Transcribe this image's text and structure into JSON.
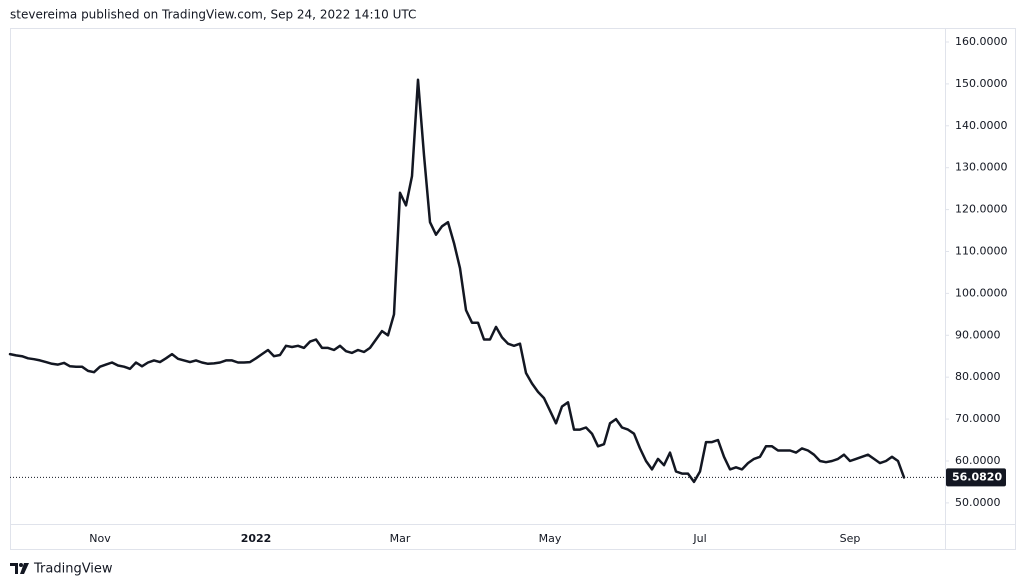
{
  "header": "stevereima published on TradingView.com, Sep 24, 2022 14:10 UTC",
  "brand": "TradingView",
  "chart_data": {
    "type": "line",
    "categories": [
      null,
      null,
      null,
      null,
      null,
      null,
      null,
      null,
      null,
      null,
      null,
      null,
      null,
      null,
      null,
      "Nov",
      null,
      null,
      null,
      null,
      null,
      null,
      null,
      null,
      null,
      null,
      null,
      null,
      null,
      null,
      null,
      null,
      null,
      null,
      null,
      null,
      null,
      null,
      null,
      null,
      null,
      "2022",
      null,
      null,
      null,
      null,
      null,
      null,
      null,
      null,
      null,
      null,
      null,
      null,
      null,
      null,
      null,
      null,
      null,
      null,
      null,
      null,
      null,
      null,
      null,
      "Mar",
      null,
      null,
      null,
      null,
      null,
      null,
      null,
      null,
      null,
      null,
      null,
      null,
      null,
      null,
      null,
      null,
      null,
      null,
      null,
      null,
      null,
      null,
      null,
      null,
      "May",
      null,
      null,
      null,
      null,
      null,
      null,
      null,
      null,
      null,
      null,
      null,
      null,
      null,
      null,
      null,
      null,
      null,
      null,
      null,
      null,
      null,
      null,
      null,
      null,
      "Jul",
      null,
      null,
      null,
      null,
      null,
      null,
      null,
      null,
      null,
      null,
      null,
      null,
      null,
      null,
      null,
      null,
      null,
      null,
      null,
      null,
      null,
      null,
      null,
      null,
      "Sep",
      null,
      null,
      null,
      null,
      null,
      null,
      null,
      null,
      null
    ],
    "series": [
      {
        "color": "#131722",
        "values": [
          85.5,
          85.2,
          85,
          84.5,
          84.3,
          84,
          83.6,
          83.2,
          83,
          83.4,
          82.6,
          82.5,
          82.5,
          81.5,
          81.2,
          82.5,
          83,
          83.5,
          82.8,
          82.5,
          82,
          83.5,
          82.6,
          83.5,
          84,
          83.6,
          84.5,
          85.5,
          84.4,
          84,
          83.6,
          84,
          83.5,
          83.2,
          83.3,
          83.5,
          84,
          84,
          83.5,
          83.5,
          83.6,
          84.5,
          85.5,
          86.5,
          85,
          85.3,
          87.5,
          87.2,
          87.5,
          87,
          88.5,
          89,
          87,
          87,
          86.5,
          87.5,
          86.2,
          85.8,
          86.5,
          86,
          87,
          89,
          91,
          90,
          95,
          124,
          121,
          128,
          151,
          133,
          117,
          114,
          116,
          117,
          112,
          106,
          96,
          93,
          93,
          89,
          89,
          92,
          89.5,
          88,
          87.5,
          88,
          81,
          78.5,
          76.5,
          75,
          72,
          69,
          73,
          74,
          67.5,
          67.5,
          68,
          66.5,
          63.5,
          64,
          69,
          70,
          68,
          67.5,
          66.5,
          63,
          60,
          58,
          60.5,
          59,
          62,
          57.5,
          57,
          57,
          55,
          57.5,
          64.5,
          64.5,
          65,
          61,
          58,
          58.5,
          58,
          59.5,
          60.5,
          61,
          63.5,
          63.5,
          62.5,
          62.5,
          62.5,
          62,
          63,
          62.5,
          61.5,
          60,
          59.7,
          60,
          60.5,
          61.5,
          60,
          60.5,
          61,
          61.5,
          60.5,
          59.5,
          60,
          61,
          60,
          56.082
        ]
      }
    ],
    "price_line": {
      "value": 56.082,
      "label": "56.0820"
    },
    "ylim": [
      44.96,
      163.34
    ],
    "yticks": [
      {
        "value": 50,
        "label": "50.0000"
      },
      {
        "value": 60,
        "label": "60.0000"
      },
      {
        "value": 70,
        "label": "70.0000"
      },
      {
        "value": 80,
        "label": "80.0000"
      },
      {
        "value": 90,
        "label": "90.0000"
      },
      {
        "value": 100,
        "label": "100.0000"
      },
      {
        "value": 110,
        "label": "110.0000"
      },
      {
        "value": 120,
        "label": "120.0000"
      },
      {
        "value": 130,
        "label": "130.0000"
      },
      {
        "value": 140,
        "label": "140.0000"
      },
      {
        "value": 150,
        "label": "150.0000"
      },
      {
        "value": 160,
        "label": "160.0000"
      }
    ],
    "grid": false
  }
}
